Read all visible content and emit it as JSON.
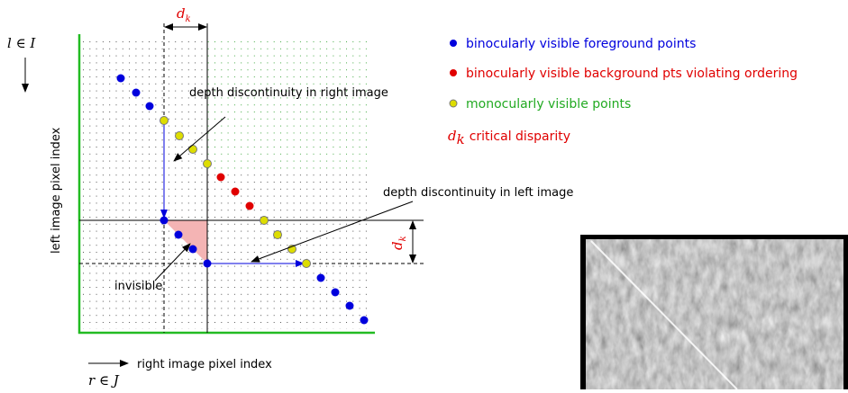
{
  "diagram": {
    "top_symbol": {
      "base": "d",
      "sub": "k"
    },
    "side_symbol": {
      "base": "d",
      "sub": "k"
    },
    "row_symbol": "l ∈ I",
    "row_axis_label": "left image pixel index",
    "col_symbol": "r ∈ J",
    "col_axis_label": "right image pixel index",
    "annotations": [
      "depth discontinuity in right image",
      "depth discontinuity in left image",
      "invisible"
    ]
  },
  "legend": {
    "items": [
      {
        "label": "binocularly visible foreground points",
        "color": "#0000dd"
      },
      {
        "label": "binocularly visible background pts violating ordering",
        "color": "#e00000"
      },
      {
        "label": "monocularly visible points",
        "color": "#22aa22"
      }
    ],
    "symbol_entry": {
      "base": "d",
      "sub": "k",
      "label": "critical disparity",
      "color": "#e00000"
    }
  }
}
